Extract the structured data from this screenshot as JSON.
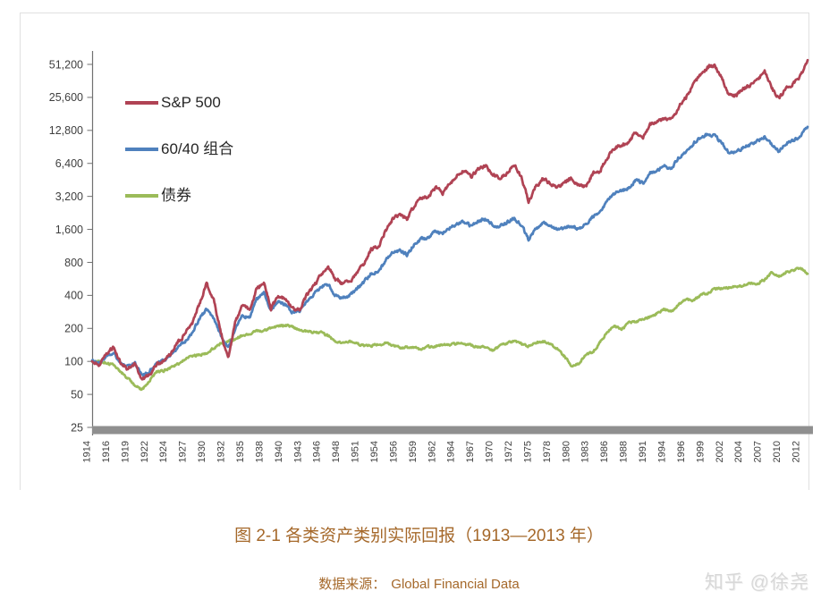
{
  "figure": {
    "source_label": "数据来源：",
    "source_value": "Global Financial Data",
    "watermark": "知乎 @徐尧"
  },
  "chart_data": {
    "type": "line",
    "title": "图 2-1 各类资产类别实际回报（1913—2013 年）",
    "xlabel": "",
    "ylabel": "",
    "y_scale": "log2",
    "ylim": [
      25,
      51200
    ],
    "x_range_years": [
      1913,
      2013
    ],
    "grid": false,
    "legend_position": "upper-left-inside",
    "base_index_value": 100,
    "y_tick_labels": [
      "51,200",
      "25,600",
      "12,800",
      "6,400",
      "3,200",
      "1,600",
      "800",
      "400",
      "200",
      "100",
      "50",
      "25"
    ],
    "x_tick_labels": [
      "1914",
      "1916",
      "1919",
      "1922",
      "1924",
      "1927",
      "1930",
      "1932",
      "1935",
      "1938",
      "1940",
      "1943",
      "1946",
      "1948",
      "1951",
      "1954",
      "1956",
      "1959",
      "1962",
      "1964",
      "1967",
      "1970",
      "1972",
      "1975",
      "1978",
      "1980",
      "1983",
      "1986",
      "1988",
      "1991",
      "1994",
      "1996",
      "1999",
      "2002",
      "2004",
      "2007",
      "2010",
      "2012"
    ],
    "colors": {
      "sp500": "#b04354",
      "portfolio_60_40": "#4f81bd",
      "bonds": "#9bbb59",
      "axis": "#707070",
      "axis_bar": "#8f8f8f",
      "tick_text": "#3f3f3f",
      "legend_text": "#262626",
      "caption_text": "#a5682a",
      "watermark_text": "#d8d8d8"
    },
    "legend": [
      {
        "label": "S&P 500",
        "color": "#b04354"
      },
      {
        "label": "60/40 组合",
        "color": "#4f81bd"
      },
      {
        "label": "债券",
        "color": "#9bbb59"
      }
    ],
    "series": [
      {
        "id": "sp500",
        "name": "S&P 500",
        "color": "#b04354",
        "start_year": 1913,
        "values": [
          100,
          92,
          118,
          135,
          95,
          85,
          95,
          68,
          75,
          95,
          100,
          118,
          150,
          178,
          225,
          330,
          510,
          360,
          185,
          105,
          225,
          330,
          290,
          460,
          530,
          300,
          400,
          370,
          300,
          295,
          400,
          480,
          620,
          730,
          560,
          515,
          530,
          630,
          780,
          1050,
          1100,
          1550,
          2000,
          2200,
          1950,
          2600,
          3100,
          3150,
          3900,
          3400,
          4200,
          4900,
          5500,
          4800,
          5700,
          6100,
          5100,
          4600,
          5300,
          6200,
          4800,
          2850,
          3900,
          4700,
          4200,
          3800,
          4200,
          4700,
          4000,
          3900,
          5200,
          5500,
          7200,
          8800,
          9500,
          10000,
          12500,
          11000,
          14500,
          15500,
          16500,
          16000,
          21000,
          25500,
          33000,
          41000,
          48000,
          50500,
          39000,
          27000,
          26000,
          31000,
          33000,
          37000,
          45000,
          31000,
          24500,
          32000,
          34000,
          40000,
          56000
        ]
      },
      {
        "id": "portfolio-60-40",
        "name": "60/40 组合",
        "color": "#4f81bd",
        "start_year": 1913,
        "values": [
          100,
          96,
          112,
          122,
          96,
          89,
          96,
          74,
          81,
          96,
          101,
          113,
          135,
          152,
          183,
          243,
          300,
          248,
          172,
          130,
          200,
          262,
          248,
          368,
          425,
          288,
          350,
          330,
          282,
          288,
          355,
          408,
          478,
          508,
          400,
          382,
          400,
          458,
          528,
          635,
          655,
          825,
          975,
          1020,
          945,
          1150,
          1300,
          1345,
          1550,
          1450,
          1650,
          1800,
          1900,
          1700,
          1900,
          2000,
          1750,
          1700,
          1850,
          2050,
          1750,
          1300,
          1600,
          1850,
          1700,
          1600,
          1650,
          1750,
          1600,
          1800,
          2100,
          2300,
          2900,
          3400,
          3600,
          3800,
          4500,
          4200,
          5200,
          5500,
          6000,
          5800,
          7200,
          8200,
          9700,
          11000,
          11800,
          11500,
          9800,
          8000,
          8000,
          9000,
          9400,
          10200,
          11200,
          9600,
          8200,
          9800,
          10400,
          11500,
          13800
        ]
      },
      {
        "id": "bonds",
        "name": "债券",
        "color": "#9bbb59",
        "start_year": 1913,
        "values": [
          100,
          99,
          97,
          92,
          80,
          70,
          60,
          55,
          66,
          80,
          82,
          88,
          95,
          105,
          112,
          115,
          118,
          132,
          145,
          152,
          160,
          172,
          178,
          188,
          192,
          200,
          208,
          215,
          205,
          192,
          188,
          185,
          183,
          170,
          152,
          148,
          153,
          145,
          138,
          139,
          142,
          146,
          140,
          133,
          134,
          134,
          128,
          136,
          138,
          142,
          143,
          145,
          146,
          140,
          134,
          136,
          126,
          138,
          148,
          152,
          145,
          138,
          148,
          152,
          145,
          130,
          112,
          90,
          95,
          115,
          122,
          150,
          185,
          210,
          195,
          225,
          232,
          238,
          255,
          275,
          300,
          285,
          330,
          370,
          355,
          400,
          420,
          455,
          465,
          470,
          480,
          495,
          510,
          515,
          555,
          650,
          590,
          650,
          680,
          715,
          630
        ]
      }
    ]
  }
}
